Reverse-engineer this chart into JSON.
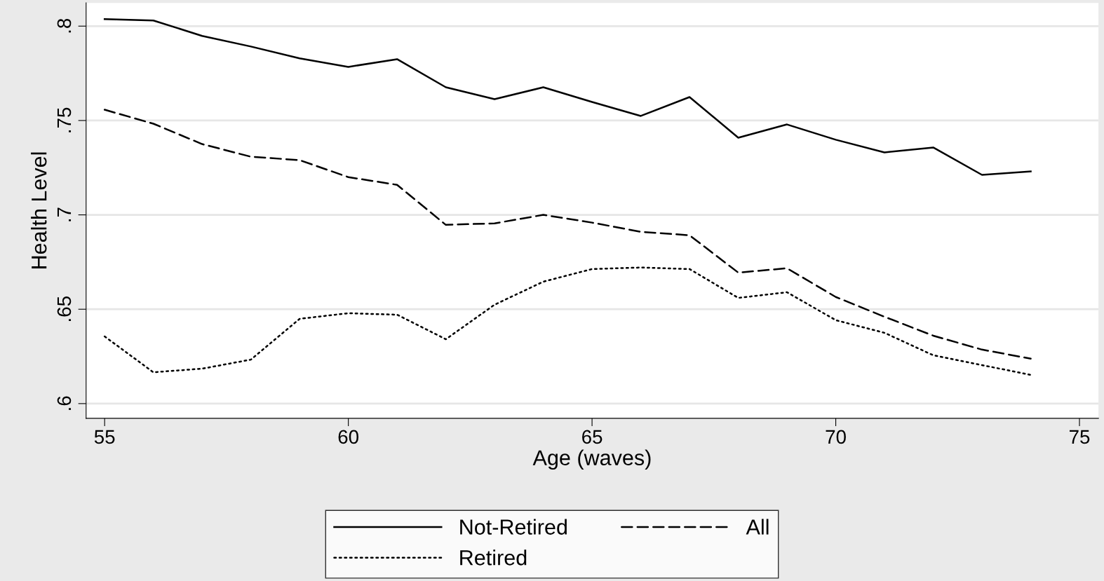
{
  "chart_data": {
    "type": "line",
    "xlabel": "Age (waves)",
    "ylabel": "Health Level",
    "x": [
      55,
      56,
      57,
      58,
      59,
      60,
      61,
      62,
      63,
      64,
      65,
      66,
      67,
      68,
      69,
      70,
      71,
      72,
      73,
      74
    ],
    "series": [
      {
        "name": "Not-Retired",
        "color": "#000000",
        "line_style": "solid",
        "values": [
          0.8037,
          0.803,
          0.7948,
          0.7892,
          0.7829,
          0.7784,
          0.7825,
          0.7676,
          0.7613,
          0.7676,
          0.7598,
          0.7524,
          0.7624,
          0.7409,
          0.7479,
          0.7398,
          0.7331,
          0.7357,
          0.7212,
          0.723
        ]
      },
      {
        "name": "All",
        "color": "#000000",
        "line_style": "dashed",
        "values": [
          0.7557,
          0.7483,
          0.7375,
          0.7308,
          0.729,
          0.72,
          0.7159,
          0.6947,
          0.6955,
          0.7,
          0.6959,
          0.691,
          0.6892,
          0.6694,
          0.6717,
          0.6565,
          0.646,
          0.636,
          0.6286,
          0.6238
        ]
      },
      {
        "name": "Retired",
        "color": "#000000",
        "line_style": "dotted",
        "values": [
          0.6356,
          0.6166,
          0.6185,
          0.6233,
          0.6449,
          0.6479,
          0.6471,
          0.6341,
          0.6524,
          0.6646,
          0.6713,
          0.6721,
          0.6713,
          0.656,
          0.659,
          0.6442,
          0.6375,
          0.6256,
          0.6204,
          0.6152
        ]
      }
    ],
    "xlim": [
      54.62,
      75.39
    ],
    "xticks": [
      55,
      60,
      65,
      70,
      75
    ],
    "ylim": [
      0.5922,
      0.8123
    ],
    "yticks": [
      {
        "value": 0.6,
        "label": ".6"
      },
      {
        "value": 0.65,
        "label": ".65"
      },
      {
        "value": 0.7,
        "label": ".7"
      },
      {
        "value": 0.75,
        "label": ".75"
      },
      {
        "value": 0.8,
        "label": ".8"
      }
    ],
    "grid": "y",
    "legend": "bottom",
    "marker": "none"
  }
}
